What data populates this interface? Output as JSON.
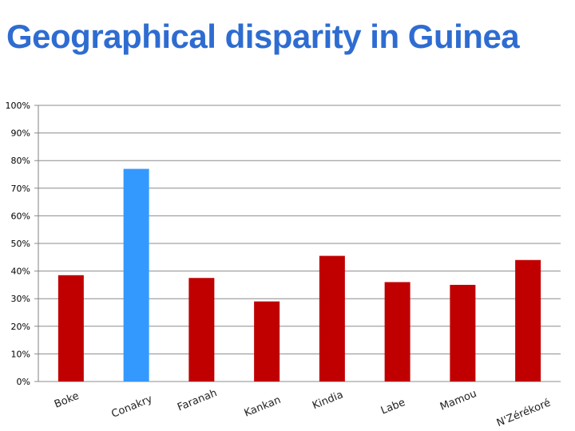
{
  "colors": {
    "title": "#2e6cd1",
    "bar_default": "#c00000",
    "bar_highlight": "#3399ff",
    "gridline": "#8c8c8c",
    "axis": "#808080"
  },
  "chart_data": {
    "type": "bar",
    "title": "Geographical disparity in Guinea",
    "xlabel": "",
    "ylabel": "",
    "categories": [
      "Boke",
      "Conakry",
      "Faranah",
      "Kankan",
      "Kindia",
      "Labe",
      "Mamou",
      "N'Zérékoré"
    ],
    "values": [
      38.5,
      77,
      37.5,
      29,
      45.5,
      36,
      35,
      44
    ],
    "highlight": [
      "Conakry"
    ],
    "ylim": [
      0,
      100
    ],
    "yticks": [
      0,
      10,
      20,
      30,
      40,
      50,
      60,
      70,
      80,
      90,
      100
    ],
    "ytick_labels": [
      "0%",
      "10%",
      "20%",
      "30%",
      "40%",
      "50%",
      "60%",
      "70%",
      "80%",
      "90%",
      "100%"
    ],
    "grid": true,
    "legend": "none"
  }
}
